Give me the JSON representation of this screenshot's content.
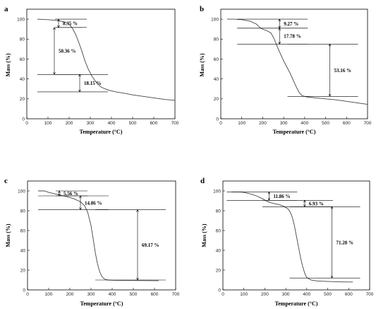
{
  "chart_data": [
    {
      "type": "line",
      "panel_label": "a",
      "xlabel": "Temperature (°C)",
      "ylabel": "Mass (%)",
      "xlim": [
        0,
        700
      ],
      "ylim": [
        0,
        110
      ],
      "x_ticks": [
        0,
        100,
        200,
        300,
        400,
        500,
        600,
        700
      ],
      "y_ticks": [
        0,
        20,
        40,
        60,
        80,
        100
      ],
      "series": [
        {
          "x": [
            50,
            100,
            150,
            180,
            200,
            215,
            230,
            245,
            260,
            275,
            290,
            310,
            330,
            350,
            370,
            390,
            420,
            450,
            500,
            550,
            600,
            650,
            700
          ],
          "y": [
            100,
            99.5,
            98.5,
            97,
            95,
            91,
            85,
            77,
            68,
            58,
            50,
            42,
            36,
            32,
            30,
            28.5,
            27,
            26,
            24,
            22.5,
            21,
            19.5,
            18.5
          ]
        }
      ],
      "annotations": [
        {
          "label": "8.35 %",
          "y_top": 100,
          "y_bottom": 91.65,
          "x": 150
        },
        {
          "label": "50.36 %",
          "y_top": 91.65,
          "y_bottom": 44.5,
          "x": 130
        },
        {
          "label": "18.15 %",
          "y_top": 44.5,
          "y_bottom": 27,
          "x": 250
        }
      ]
    },
    {
      "type": "line",
      "panel_label": "b",
      "xlabel": "Temperature (°C)",
      "ylabel": "Mass (%)",
      "xlim": [
        0,
        700
      ],
      "ylim": [
        0,
        110
      ],
      "x_ticks": [
        0,
        100,
        200,
        300,
        400,
        500,
        600,
        700
      ],
      "y_ticks": [
        0,
        20,
        40,
        60,
        80,
        100
      ],
      "series": [
        {
          "x": [
            30,
            60,
            100,
            140,
            170,
            190,
            205,
            220,
            240,
            255,
            270,
            285,
            300,
            315,
            330,
            345,
            360,
            375,
            390,
            410,
            450,
            500,
            550,
            600,
            650,
            700
          ],
          "y": [
            100,
            100,
            99.5,
            98,
            95,
            91,
            89.5,
            88.5,
            86,
            80,
            72,
            65,
            58,
            52,
            46,
            39,
            32,
            26,
            23,
            22,
            21,
            20,
            19,
            17.5,
            16,
            14.5
          ]
        }
      ],
      "annotations": [
        {
          "label": "9.27 %",
          "y_top": 100,
          "y_bottom": 91,
          "x": 280
        },
        {
          "label": "17.78 %",
          "y_top": 91,
          "y_bottom": 75,
          "x": 280
        },
        {
          "label": "53.16 %",
          "y_top": 75,
          "y_bottom": 22.5,
          "x": 520
        }
      ]
    },
    {
      "type": "line",
      "panel_label": "c",
      "xlabel": "Temperature (°C)",
      "ylabel": "Mass (%)",
      "xlim": [
        0,
        700
      ],
      "ylim": [
        0,
        110
      ],
      "x_ticks": [
        0,
        100,
        200,
        300,
        400,
        500,
        600,
        700
      ],
      "y_ticks": [
        0,
        20,
        40,
        60,
        80,
        100
      ],
      "series": [
        {
          "x": [
            50,
            80,
            100,
            130,
            160,
            190,
            220,
            250,
            270,
            285,
            300,
            310,
            320,
            330,
            340,
            350,
            360,
            370,
            380,
            400,
            450,
            500,
            550,
            600,
            620
          ],
          "y": [
            100,
            100,
            98.5,
            97,
            95.5,
            94,
            92,
            89,
            85,
            78,
            65,
            52,
            38,
            27,
            19,
            14,
            11.5,
            10.5,
            10,
            9.8,
            9.6,
            9.5,
            9.4,
            9.3,
            9.3
          ]
        }
      ],
      "annotations": [
        {
          "label": "5.56 %",
          "y_top": 100,
          "y_bottom": 95,
          "x": 150
        },
        {
          "label": "14.86 %",
          "y_top": 95,
          "y_bottom": 81,
          "x": 250
        },
        {
          "label": "69.17 %",
          "y_top": 81,
          "y_bottom": 10,
          "x": 520
        }
      ]
    },
    {
      "type": "line",
      "panel_label": "d",
      "xlabel": "Temperature (°C)",
      "ylabel": "Mass (%)",
      "xlim": [
        0,
        700
      ],
      "ylim": [
        0,
        110
      ],
      "x_ticks": [
        0,
        100,
        200,
        300,
        400,
        500,
        600,
        700
      ],
      "y_ticks": [
        0,
        20,
        40,
        60,
        80,
        100
      ],
      "series": [
        {
          "x": [
            40,
            80,
            100,
            130,
            160,
            190,
            210,
            230,
            250,
            270,
            290,
            310,
            320,
            330,
            340,
            350,
            360,
            370,
            380,
            390,
            400,
            420,
            450,
            500,
            550,
            600,
            620
          ],
          "y": [
            99,
            99,
            98.5,
            97,
            95,
            92,
            89.5,
            88,
            87,
            86,
            84.5,
            82,
            79,
            74,
            66,
            55,
            44,
            33,
            24,
            17,
            12.5,
            10,
            9,
            8.5,
            8.2,
            8,
            8
          ]
        }
      ],
      "annotations": [
        {
          "label": "11.86 %",
          "y_top": 99,
          "y_bottom": 90.5,
          "x": 220
        },
        {
          "label": "6.93 %",
          "y_top": 90.5,
          "y_bottom": 84,
          "x": 390
        },
        {
          "label": "71.28 %",
          "y_top": 84,
          "y_bottom": 12,
          "x": 520
        }
      ]
    }
  ]
}
